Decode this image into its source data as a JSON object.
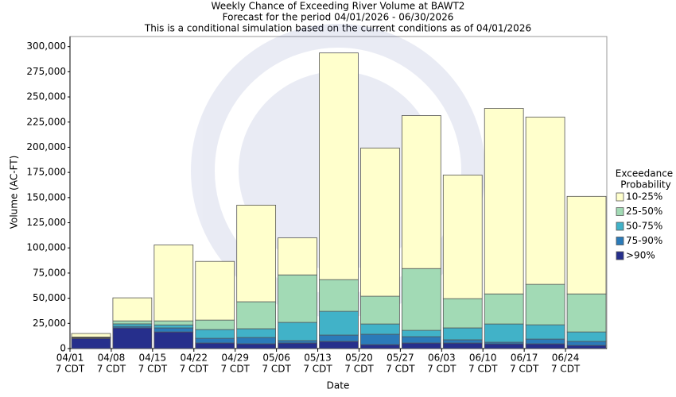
{
  "chart_data": {
    "type": "stacked_bar",
    "title": "Weekly Chance of Exceeding River Volume at BAWT2",
    "subtitle": [
      "Forecast for the period 04/01/2026 - 06/30/2026",
      "This is a conditional simulation based on the current conditions as of 04/01/2026"
    ],
    "x_label": "Date",
    "y_label": "Volume (AC-FT)",
    "categories": [
      "04/01",
      "04/08",
      "04/15",
      "04/22",
      "04/29",
      "05/06",
      "05/13",
      "05/20",
      "05/27",
      "06/03",
      "06/10",
      "06/17",
      "06/24"
    ],
    "x_sublabel": "7 CDT",
    "legend_title": [
      "Exceedance",
      "Probability"
    ],
    "series": [
      {
        "name": ">90%",
        "color": "#262f8c",
        "values": [
          10000,
          20500,
          16500,
          5500,
          4700,
          5500,
          7100,
          3900,
          5500,
          5500,
          4700,
          4700,
          3100
        ]
      },
      {
        "name": "75-90%",
        "color": "#2b7bb9",
        "values": [
          500,
          1500,
          4000,
          4700,
          6300,
          2400,
          6300,
          10300,
          6300,
          3200,
          1600,
          4700,
          4000
        ]
      },
      {
        "name": "50-75%",
        "color": "#41b2c8",
        "values": [
          500,
          2500,
          3000,
          8700,
          8700,
          18100,
          23600,
          10200,
          6300,
          11800,
          18100,
          14200,
          9400
        ]
      },
      {
        "name": "25-50%",
        "color": "#a2dab5",
        "values": [
          500,
          3000,
          4000,
          9400,
          26800,
          47200,
          31500,
          27600,
          61400,
          29100,
          29900,
          40200,
          37800
        ]
      },
      {
        "name": "10-25%",
        "color": "#ffffcc",
        "values": [
          3500,
          22900,
          75500,
          58300,
          96000,
          36800,
          225200,
          147200,
          152000,
          122800,
          184300,
          166200,
          96900
        ]
      }
    ],
    "ylim": [
      0,
      310000
    ],
    "yticks": [
      0,
      {
        "value": 25000,
        "label": "25,000"
      },
      {
        "value": 50000,
        "label": "50,000"
      },
      {
        "value": 75000,
        "label": "75,000"
      },
      {
        "value": 100000,
        "label": "100,000"
      },
      {
        "value": 125000,
        "label": "125,000"
      },
      {
        "value": 150000,
        "label": "150,000"
      },
      {
        "value": 175000,
        "label": "175,000"
      },
      {
        "value": 200000,
        "label": "200,000"
      },
      {
        "value": 225000,
        "label": "225,000"
      },
      {
        "value": 250000,
        "label": "250,000"
      },
      {
        "value": 275000,
        "label": "275,000"
      },
      {
        "value": 300000,
        "label": "300,000"
      }
    ],
    "legend_position": "right"
  }
}
